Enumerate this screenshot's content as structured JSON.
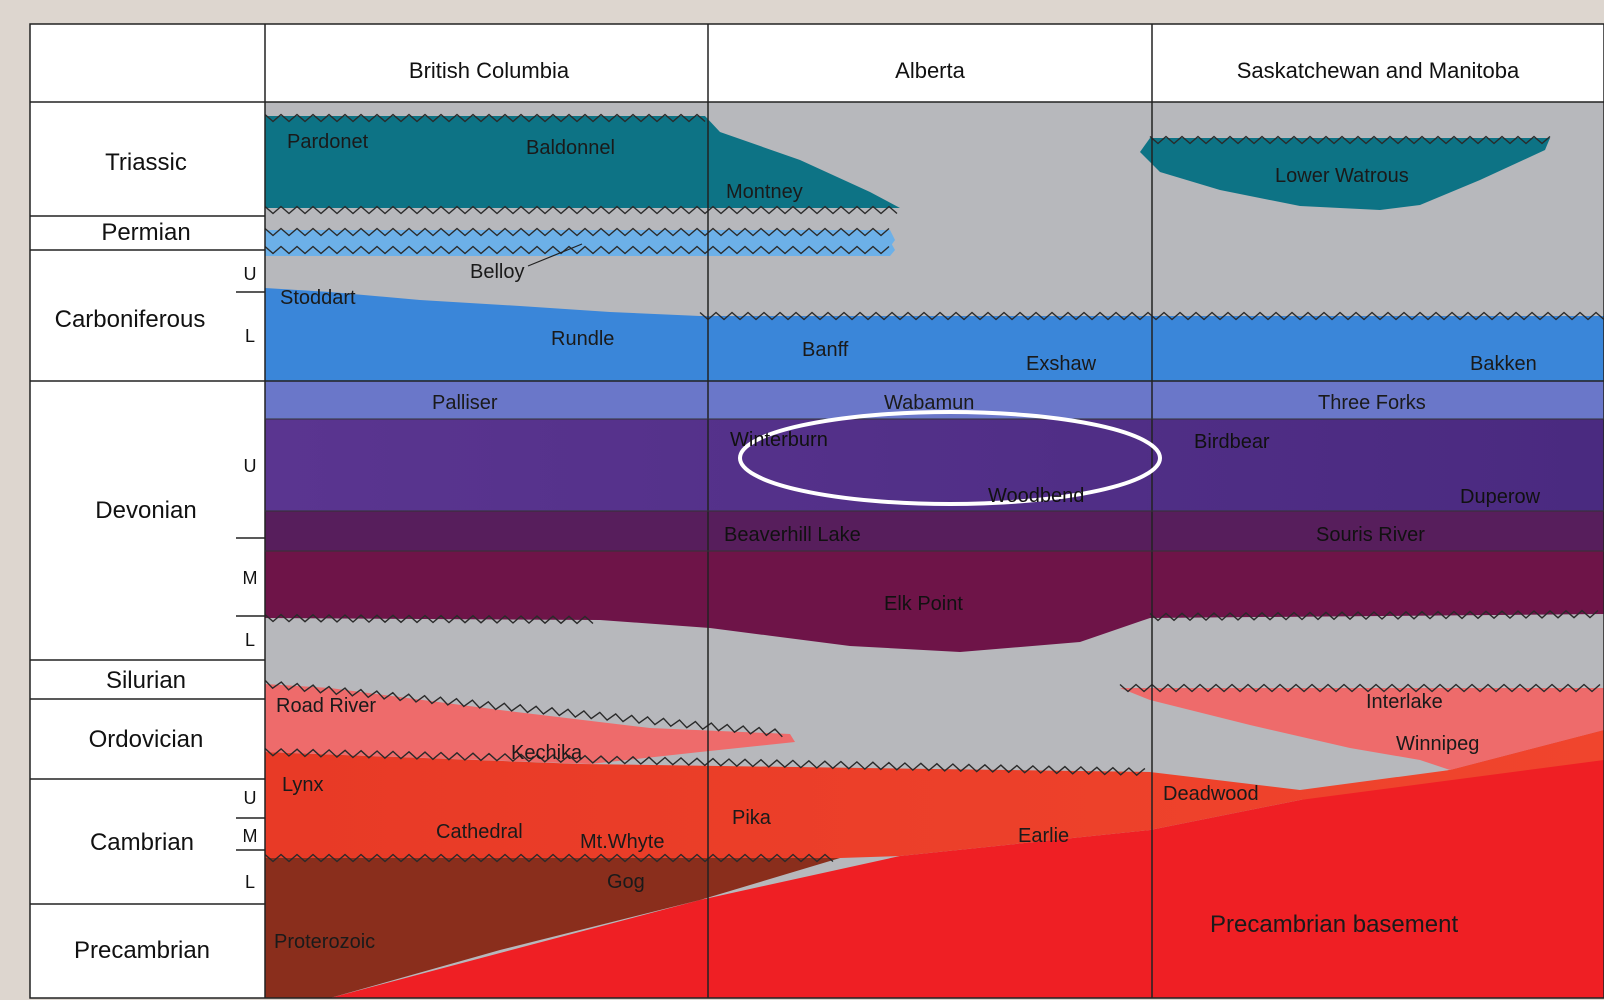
{
  "columns": [
    "British Columbia",
    "Alberta",
    "Saskatchewan and Manitoba"
  ],
  "periods": [
    {
      "name": "Triassic",
      "subdivisions": []
    },
    {
      "name": "Permian",
      "subdivisions": []
    },
    {
      "name": "Carboniferous",
      "subdivisions": [
        "U",
        "L"
      ]
    },
    {
      "name": "Devonian",
      "subdivisions": [
        "U",
        "M",
        "L"
      ]
    },
    {
      "name": "Silurian",
      "subdivisions": []
    },
    {
      "name": "Ordovician",
      "subdivisions": []
    },
    {
      "name": "Cambrian",
      "subdivisions": [
        "U",
        "M",
        "L"
      ]
    },
    {
      "name": "Precambrian",
      "subdivisions": []
    }
  ],
  "formations": {
    "pardonet": "Pardonet",
    "baldonnel": "Baldonnel",
    "montney": "Montney",
    "lower_watrous": "Lower Watrous",
    "belloy": "Belloy",
    "stoddart": "Stoddart",
    "rundle": "Rundle",
    "banff": "Banff",
    "exshaw": "Exshaw",
    "bakken": "Bakken",
    "palliser": "Palliser",
    "wabamun": "Wabamun",
    "three_forks": "Three Forks",
    "winterburn": "Winterburn",
    "woodbend": "Woodbend",
    "birdbear": "Birdbear",
    "duperow": "Duperow",
    "beaverhill_lake": "Beaverhill Lake",
    "souris_river": "Souris River",
    "elk_point": "Elk Point",
    "road_river": "Road River",
    "kechika": "Kechika",
    "interlake": "Interlake",
    "winnipeg": "Winnipeg",
    "lynx": "Lynx",
    "cathedral": "Cathedral",
    "mt_whyte": "Mt.Whyte",
    "pika": "Pika",
    "earlie": "Earlie",
    "deadwood": "Deadwood",
    "gog": "Gog",
    "proterozoic": "Proterozoic",
    "precambrian_basement": "Precambrian basement"
  },
  "colors": {
    "gray": "#b7b8bc",
    "teal": "#0d7385",
    "blue": "#3a86d9",
    "palliser": "#6a77c9",
    "upper_devonian": "#4f2d86",
    "beaverhill": "#571e5c",
    "elk_point": "#6e1448",
    "road_river": "#ee6b6b",
    "cambrian": "#e8402a",
    "proterozoic": "#8a2e1c",
    "basement": "#ef1f24"
  }
}
